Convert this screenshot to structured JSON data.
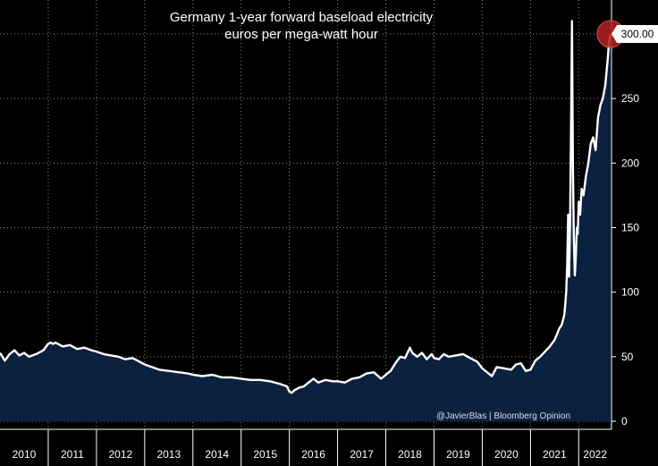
{
  "chart_data": {
    "type": "area",
    "title": "Germany 1-year forward baseload electricity",
    "subtitle": "euros per mega-watt hour",
    "credit": "@JavierBlas | Bloomberg Opinion",
    "x_tick_labels": [
      "2010",
      "2011",
      "2012",
      "2013",
      "2014",
      "2015",
      "2016",
      "2017",
      "2018",
      "2019",
      "2020",
      "2021",
      "2022"
    ],
    "y_ticks": [
      0,
      50,
      100,
      150,
      200,
      250
    ],
    "ylim": [
      0,
      310
    ],
    "xlim": [
      2010.0,
      2022.68
    ],
    "grid": "dotted",
    "latest_value_label": "300.00",
    "latest_value": 300,
    "colors": {
      "background": "#000000",
      "area_fill": "#0b2140",
      "line": "#ffffff",
      "marker": "#b41e1e",
      "label_bg": "#ffffff"
    },
    "series": [
      {
        "x": [
          2010.0,
          2010.1,
          2010.2,
          2010.3,
          2010.4,
          2010.5,
          2010.6,
          2010.75,
          2010.9,
          2011.0,
          2011.05,
          2011.1,
          2011.15,
          2011.3,
          2011.45,
          2011.6,
          2011.75,
          2011.9,
          2012.0,
          2012.15,
          2012.3,
          2012.45,
          2012.6,
          2012.75,
          2012.9,
          2013.0,
          2013.15,
          2013.3,
          2013.5,
          2013.7,
          2013.9,
          2014.0,
          2014.2,
          2014.4,
          2014.6,
          2014.8,
          2015.0,
          2015.2,
          2015.4,
          2015.6,
          2015.8,
          2015.95,
          2016.0,
          2016.05,
          2016.1,
          2016.2,
          2016.3,
          2016.4,
          2016.5,
          2016.6,
          2016.75,
          2016.9,
          2017.0,
          2017.15,
          2017.3,
          2017.45,
          2017.6,
          2017.75,
          2017.9,
          2018.0,
          2018.1,
          2018.2,
          2018.3,
          2018.4,
          2018.5,
          2018.55,
          2018.65,
          2018.75,
          2018.85,
          2018.95,
          2019.0,
          2019.1,
          2019.2,
          2019.3,
          2019.45,
          2019.6,
          2019.75,
          2019.9,
          2020.0,
          2020.1,
          2020.2,
          2020.3,
          2020.45,
          2020.6,
          2020.7,
          2020.8,
          2020.9,
          2021.0,
          2021.1,
          2021.2,
          2021.3,
          2021.4,
          2021.5,
          2021.6,
          2021.65,
          2021.7,
          2021.72,
          2021.74,
          2021.76,
          2021.78,
          2021.8,
          2021.82,
          2021.84,
          2021.86,
          2021.88,
          2021.9,
          2021.92,
          2021.94,
          2021.96,
          2021.98,
          2022.0,
          2022.03,
          2022.06,
          2022.1,
          2022.15,
          2022.2,
          2022.25,
          2022.3,
          2022.35,
          2022.4,
          2022.45,
          2022.5,
          2022.55,
          2022.6,
          2022.63,
          2022.66
        ],
        "y": [
          53,
          47,
          52,
          55,
          51,
          53,
          50,
          52,
          55,
          60,
          61,
          60,
          61,
          58,
          59,
          56,
          57,
          55,
          54,
          52,
          51,
          50,
          48,
          49,
          46,
          44,
          42,
          40,
          39,
          38,
          37,
          36,
          35,
          36,
          34,
          34,
          33,
          32,
          32,
          31,
          29,
          27,
          23,
          22,
          24,
          26,
          27,
          30,
          33,
          30,
          32,
          31,
          31,
          30,
          33,
          34,
          37,
          38,
          33,
          36,
          39,
          45,
          50,
          49,
          57,
          53,
          50,
          53,
          48,
          52,
          49,
          48,
          52,
          50,
          51,
          52,
          49,
          46,
          41,
          38,
          35,
          42,
          41,
          40,
          44,
          45,
          39,
          40,
          47,
          50,
          54,
          58,
          63,
          72,
          75,
          82,
          90,
          100,
          120,
          160,
          112,
          150,
          225,
          310,
          200,
          140,
          113,
          128,
          150,
          145,
          170,
          160,
          180,
          175,
          190,
          200,
          215,
          220,
          210,
          235,
          245,
          250,
          260,
          280,
          295,
          300
        ]
      }
    ]
  }
}
